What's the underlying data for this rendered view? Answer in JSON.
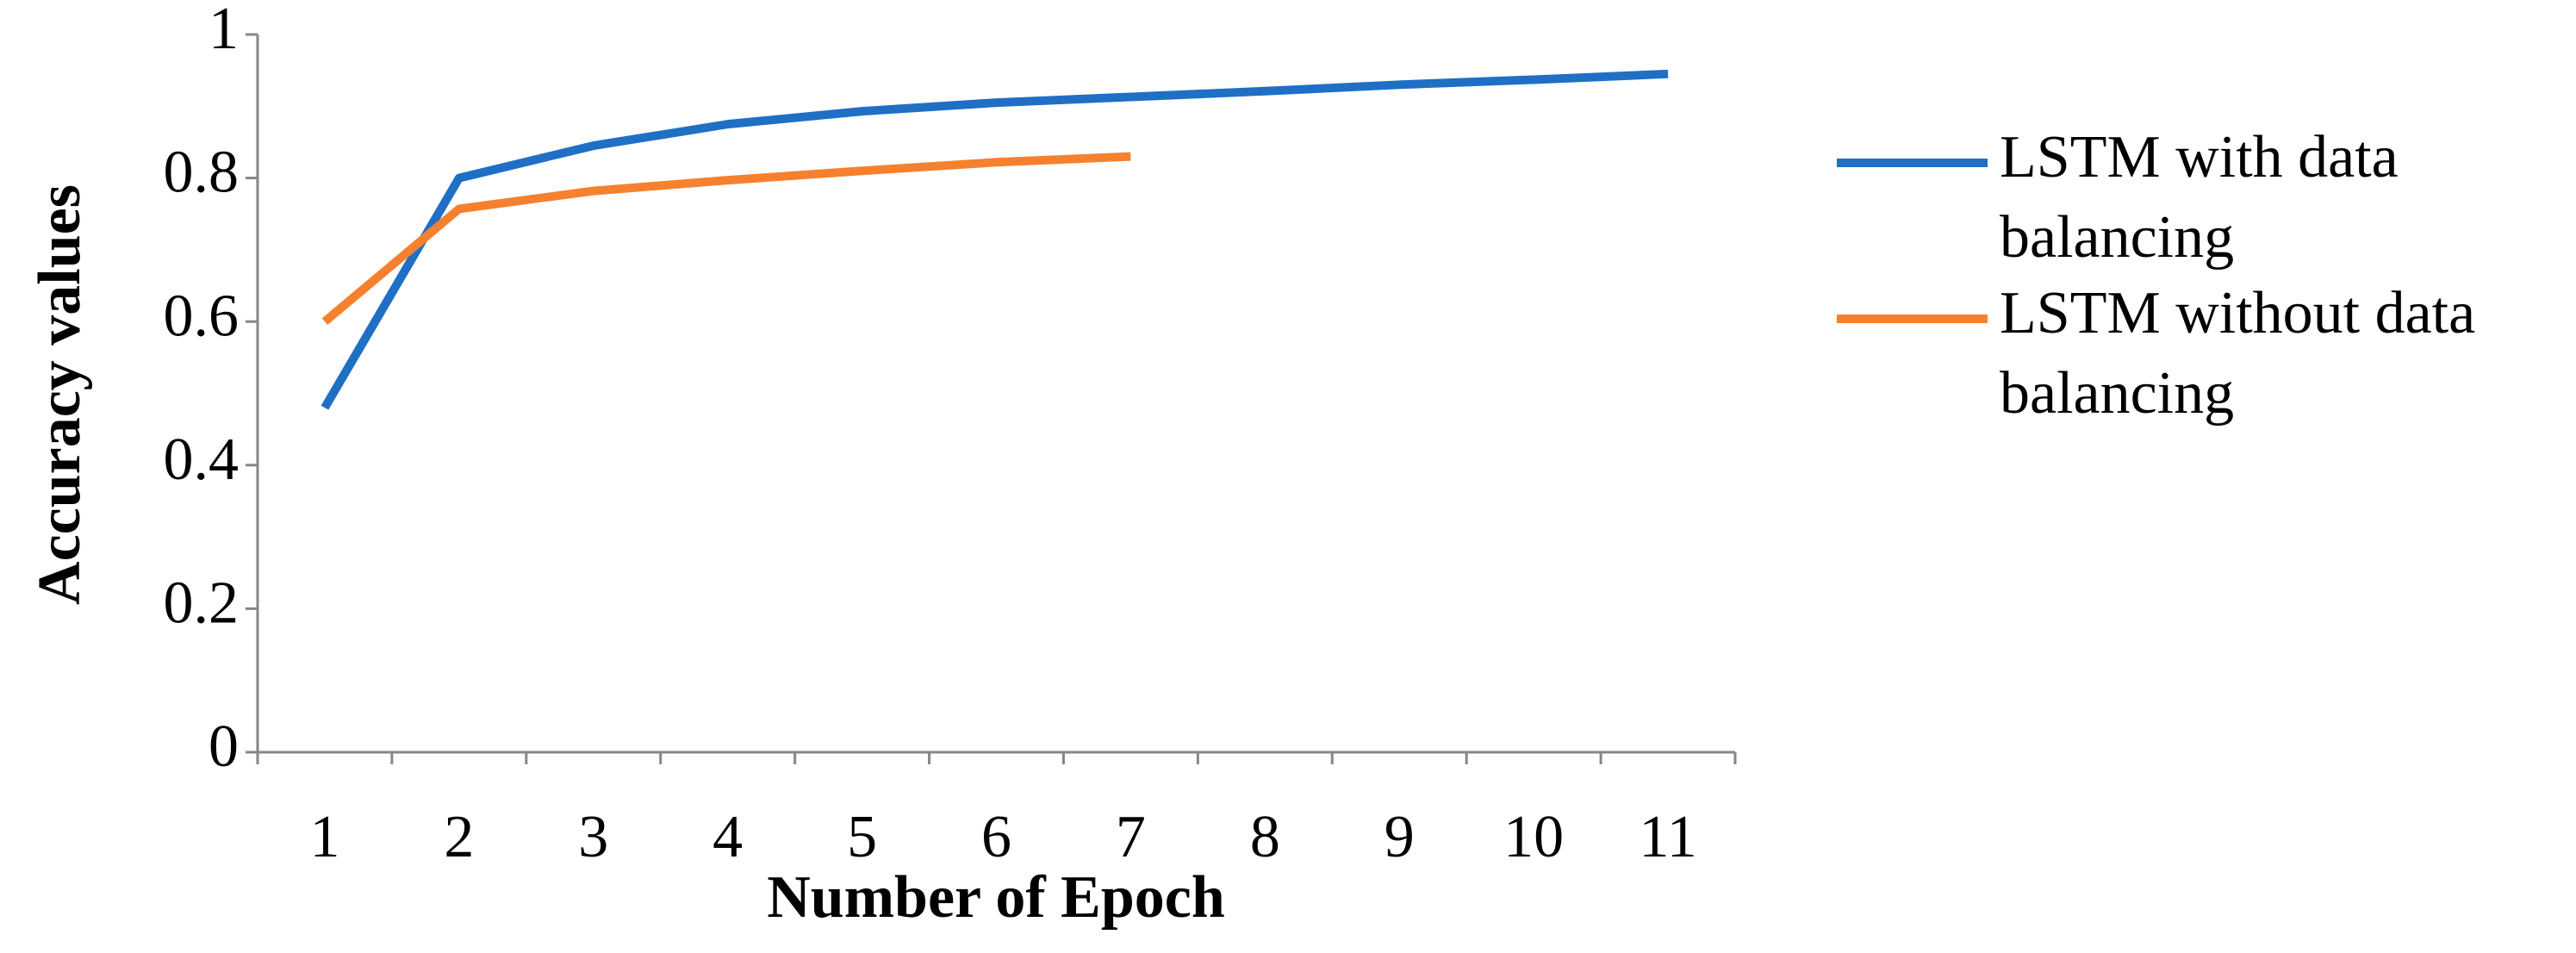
{
  "chart_data": {
    "type": "line",
    "x_label": "Number of Epoch",
    "y_label": "Accuracy values",
    "categories": [
      "1",
      "2",
      "3",
      "4",
      "5",
      "6",
      "7",
      "8",
      "9",
      "10",
      "11"
    ],
    "series": [
      {
        "name": "LSTM with data balancing",
        "color": "#1f6fc5",
        "values": [
          0.48,
          0.8,
          0.845,
          0.875,
          0.893,
          0.905,
          0.913,
          0.921,
          0.93,
          0.937,
          0.945
        ]
      },
      {
        "name": "LSTM without data balancing",
        "color": "#f5812f",
        "values": [
          0.6,
          0.757,
          0.782,
          0.797,
          0.81,
          0.822,
          0.83,
          null,
          null,
          null,
          null
        ]
      }
    ],
    "ylim": [
      0,
      1
    ],
    "yticks": [
      0,
      0.2,
      0.4,
      0.6,
      0.8,
      1
    ],
    "grid": false,
    "legend": "right"
  }
}
